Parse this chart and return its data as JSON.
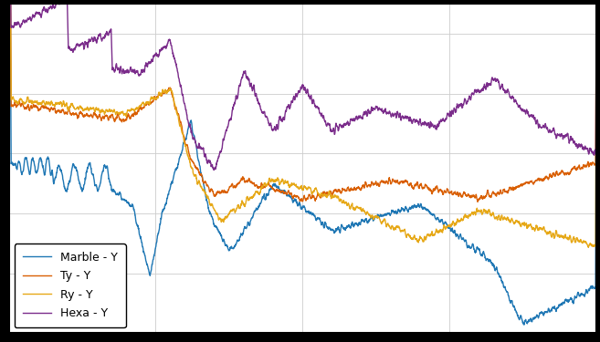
{
  "colors": {
    "marble": "#1f77b4",
    "ty": "#d95f02",
    "ry": "#e6a817",
    "hexa": "#7b2d8b"
  },
  "legend_labels": [
    "Marble - Y",
    "Ty - Y",
    "Ry - Y",
    "Hexa - Y"
  ],
  "background_color": "#ffffff",
  "outer_background": "#000000",
  "grid_color": "#cccccc",
  "freq_min": 0,
  "freq_max": 200,
  "ylim_min": -160,
  "ylim_max": -50,
  "linewidth": 1.0
}
